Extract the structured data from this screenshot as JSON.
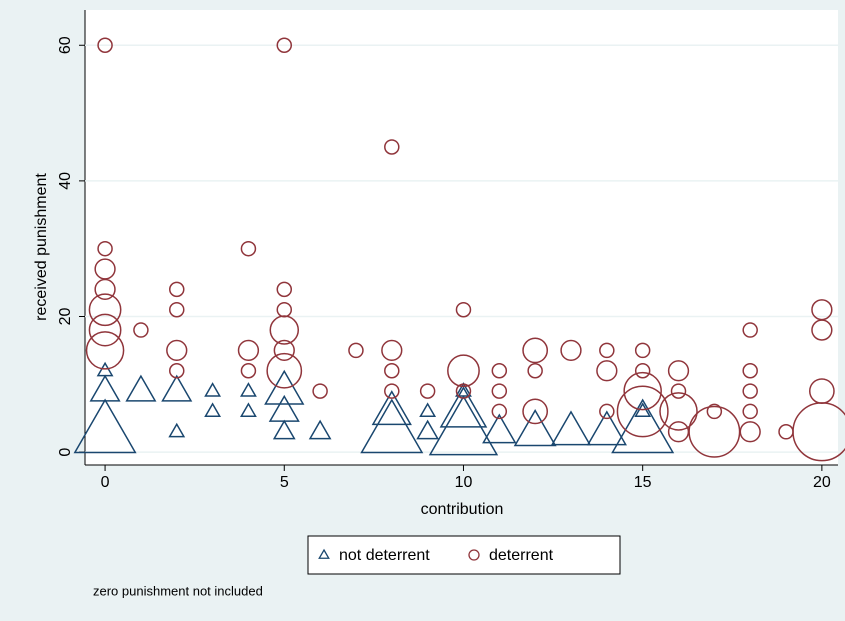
{
  "chart_data": {
    "type": "bubble",
    "xlabel": "contribution",
    "ylabel": "received punishment",
    "note": "zero punishment not included",
    "xlim": [
      -0.56,
      20.45
    ],
    "ylim": [
      -1.9,
      65.2
    ],
    "xticks": [
      0,
      5,
      10,
      15,
      20
    ],
    "yticks": [
      0,
      20,
      40,
      60
    ],
    "grid": true,
    "legend": "bottom",
    "series": [
      {
        "name": "not deterrent",
        "color": "#1a476f",
        "marker": "triangle",
        "x": [
          0,
          0,
          0,
          1,
          2,
          2,
          3,
          3,
          4,
          4,
          5,
          5,
          5,
          6,
          8,
          8,
          9,
          9,
          10,
          10,
          10,
          11,
          12,
          13,
          14,
          15,
          15
        ],
        "values": [
          12,
          9,
          3,
          9,
          9,
          3,
          9,
          6,
          9,
          6,
          9,
          6,
          3,
          3,
          6,
          3,
          6,
          3,
          9,
          6,
          3,
          3,
          3,
          3,
          3,
          6,
          3
        ],
        "sizes": [
          1,
          4,
          18,
          4,
          4,
          1,
          1,
          1,
          1,
          1,
          7,
          4,
          2,
          2,
          7,
          18,
          1,
          2,
          1,
          10,
          22,
          5,
          8,
          7,
          7,
          1,
          18
        ]
      },
      {
        "name": "deterrent",
        "color": "#90353b",
        "marker": "circle",
        "x": [
          0,
          0,
          0,
          0,
          0,
          0,
          0,
          1,
          2,
          2,
          2,
          2,
          4,
          4,
          4,
          5,
          5,
          5,
          5,
          5,
          5,
          6,
          7,
          8,
          8,
          8,
          8,
          9,
          10,
          10,
          10,
          11,
          11,
          11,
          12,
          12,
          12,
          13,
          14,
          14,
          14,
          15,
          15,
          15,
          15,
          16,
          16,
          16,
          16,
          17,
          17,
          18,
          18,
          18,
          18,
          18,
          19,
          20,
          20,
          20,
          20
        ],
        "values": [
          60,
          30,
          27,
          24,
          21,
          18,
          15,
          18,
          24,
          21,
          15,
          12,
          30,
          15,
          12,
          60,
          24,
          21,
          18,
          15,
          12,
          9,
          15,
          45,
          15,
          12,
          9,
          9,
          21,
          12,
          9,
          12,
          9,
          6,
          15,
          12,
          6,
          15,
          15,
          12,
          6,
          15,
          12,
          9,
          6,
          12,
          9,
          6,
          3,
          6,
          3,
          18,
          12,
          9,
          6,
          3,
          3,
          21,
          18,
          9,
          3
        ],
        "sizes": [
          1,
          1,
          2,
          2,
          5,
          5,
          7,
          1,
          1,
          1,
          2,
          1,
          1,
          2,
          1,
          1,
          1,
          1,
          4,
          2,
          6,
          1,
          1,
          1,
          2,
          1,
          1,
          1,
          1,
          5,
          1,
          1,
          1,
          1,
          3,
          1,
          3,
          2,
          1,
          2,
          1,
          1,
          1,
          7,
          13,
          2,
          1,
          7,
          2,
          1,
          13,
          1,
          1,
          1,
          1,
          2,
          1,
          2,
          2,
          3,
          17
        ]
      }
    ]
  }
}
